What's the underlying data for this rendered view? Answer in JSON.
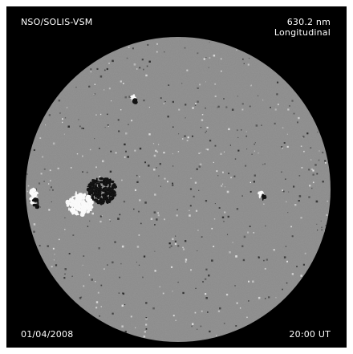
{
  "header": {
    "instrument": "NSO/SOLIS-VSM",
    "wavelength": "630.2 nm",
    "mode": "Longitudinal"
  },
  "footer": {
    "date": "01/04/2008",
    "time": "20:00 UT"
  },
  "colors": {
    "background": "#000000",
    "disk": "#8a8a8a",
    "positive_polarity": "#ffffff",
    "negative_polarity": "#000000"
  }
}
